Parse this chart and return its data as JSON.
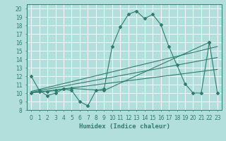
{
  "bg_color": "#b2dfdb",
  "grid_color": "#ffffff",
  "line_color": "#2e7d6e",
  "xlabel": "Humidex (Indice chaleur)",
  "xlim": [
    -0.5,
    23.5
  ],
  "ylim": [
    8,
    20.5
  ],
  "xticks": [
    0,
    1,
    2,
    3,
    4,
    5,
    6,
    7,
    8,
    9,
    10,
    11,
    12,
    13,
    14,
    15,
    16,
    17,
    18,
    19,
    20,
    21,
    22,
    23
  ],
  "yticks": [
    8,
    9,
    10,
    11,
    12,
    13,
    14,
    15,
    16,
    17,
    18,
    19,
    20
  ],
  "line1_x": [
    0,
    1,
    2,
    3,
    4,
    5,
    6,
    7,
    8,
    9,
    10,
    11,
    12,
    13,
    14,
    15,
    16,
    17,
    18,
    19,
    20,
    21,
    22,
    23
  ],
  "line1_y": [
    12.0,
    10.3,
    9.7,
    10.0,
    10.5,
    10.3,
    9.0,
    8.5,
    10.3,
    10.5,
    15.5,
    17.8,
    19.3,
    19.7,
    18.8,
    19.3,
    18.1,
    15.5,
    13.3,
    11.1,
    10.0,
    10.0,
    16.0,
    10.0
  ],
  "line2_x": [
    0,
    23
  ],
  "line2_y": [
    10.2,
    15.5
  ],
  "line3_x": [
    0,
    23
  ],
  "line3_y": [
    10.1,
    14.2
  ],
  "line4_x": [
    0,
    23
  ],
  "line4_y": [
    10.0,
    12.8
  ],
  "line5_x": [
    0,
    1,
    2,
    3,
    4,
    5,
    9,
    22
  ],
  "line5_y": [
    10.0,
    10.15,
    10.2,
    10.3,
    10.5,
    10.55,
    10.3,
    16.0
  ],
  "marker": "D",
  "markersize": 2.0,
  "linewidth": 0.8
}
